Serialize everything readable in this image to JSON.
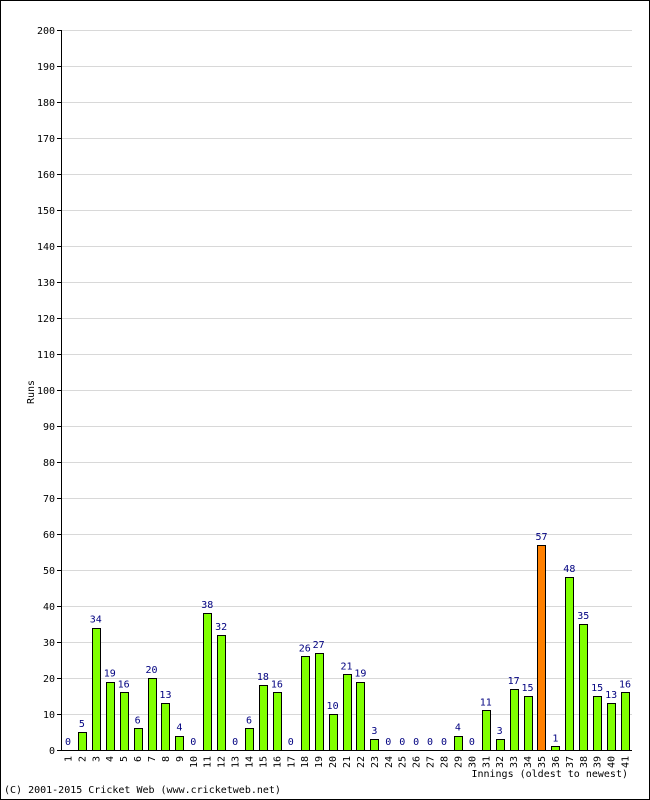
{
  "chart_data": {
    "type": "bar",
    "xlabel": "Innings (oldest to newest)",
    "ylabel": "Runs",
    "ylim": [
      0,
      200
    ],
    "y_ticks": [
      0,
      10,
      20,
      30,
      40,
      50,
      60,
      70,
      80,
      90,
      100,
      110,
      120,
      130,
      140,
      150,
      160,
      170,
      180,
      190,
      200
    ],
    "grid": true,
    "categories": [
      "1",
      "2",
      "3",
      "4",
      "5",
      "6",
      "7",
      "8",
      "9",
      "10",
      "11",
      "12",
      "13",
      "14",
      "15",
      "16",
      "17",
      "18",
      "19",
      "20",
      "21",
      "22",
      "23",
      "24",
      "25",
      "26",
      "27",
      "28",
      "29",
      "30",
      "31",
      "32",
      "33",
      "34",
      "35",
      "36",
      "37",
      "38",
      "39",
      "40",
      "41"
    ],
    "values": [
      0,
      5,
      34,
      19,
      16,
      6,
      20,
      13,
      4,
      0,
      38,
      32,
      0,
      6,
      18,
      16,
      0,
      26,
      27,
      10,
      21,
      19,
      3,
      0,
      0,
      0,
      0,
      0,
      4,
      0,
      11,
      3,
      17,
      15,
      57,
      1,
      48,
      35,
      15,
      13,
      16
    ],
    "highlight_index": 34,
    "colors": {
      "bar": "#80ff00",
      "highlight": "#ff8000",
      "bar_outline": "#000000",
      "grid": "#d8d8d8",
      "data_label": "#000080"
    }
  },
  "footer": {
    "copyright": "(C) 2001-2015 Cricket Web (www.cricketweb.net)"
  }
}
